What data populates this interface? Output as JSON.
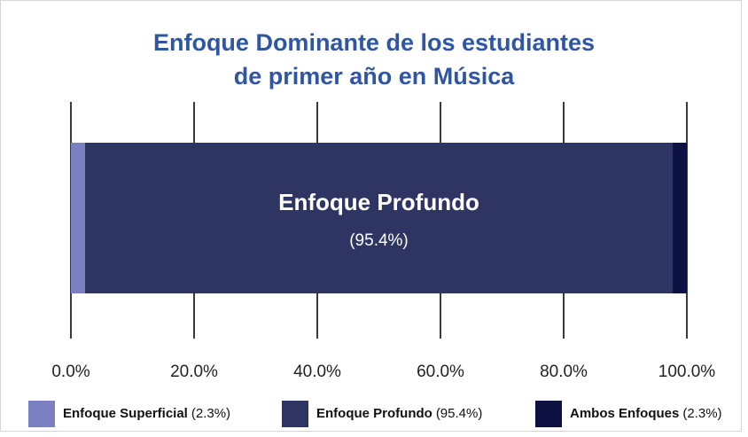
{
  "chart_data": {
    "type": "stacked_bar_horizontal",
    "title": [
      "Enfoque Dominante de los estudiantes",
      "de primer año en Música"
    ],
    "categories": [
      null
    ],
    "series": [
      {
        "name": "Enfoque Superficial",
        "color": "#7b80c0",
        "values": [
          2.3
        ],
        "value_labels": [
          "(2.3%)"
        ]
      },
      {
        "name": "Enfoque Profundo",
        "color": "#2f3563",
        "values": [
          95.4
        ],
        "value_labels": [
          "(95.4%)"
        ]
      },
      {
        "name": "Ambos Enfoques",
        "color": "#0e1242",
        "values": [
          2.3
        ],
        "value_labels": [
          "(2.3%)"
        ]
      }
    ],
    "xlim": [
      0,
      100
    ],
    "xticks": [
      {
        "value": 0,
        "label": "0.0%"
      },
      {
        "value": 20,
        "label": "20.0%"
      },
      {
        "value": 40,
        "label": "40.0%"
      },
      {
        "value": 60,
        "label": "60.0%"
      },
      {
        "value": 80,
        "label": "80.0%"
      },
      {
        "value": 100,
        "label": "100.0%"
      }
    ],
    "grid": true,
    "legend": "bottom"
  }
}
